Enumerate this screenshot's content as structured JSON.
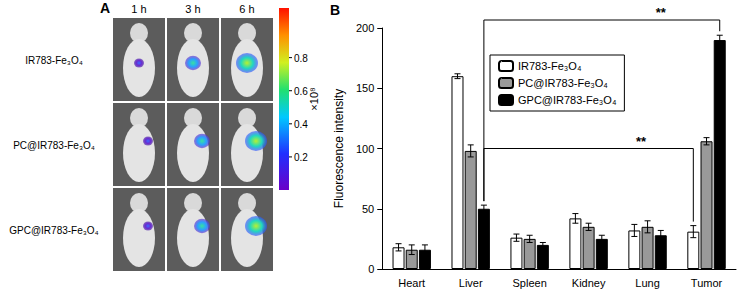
{
  "panel_a": {
    "label": "A",
    "columns": [
      "1 h",
      "3 h",
      "6 h"
    ],
    "rows": [
      "IR783-Fe₃O₄",
      "PC@IR783-Fe₃O₄",
      "GPC@IR783-Fe₃O₄"
    ],
    "colorbar": {
      "range": [
        0,
        1.1
      ],
      "ticks": [
        0.2,
        0.4,
        0.6,
        0.8
      ],
      "label": "×10⁸"
    }
  },
  "chart_data": {
    "type": "bar",
    "panel_label": "B",
    "categories": [
      "Heart",
      "Liver",
      "Spleen",
      "Kidney",
      "Lung",
      "Tumor"
    ],
    "y_label": "Fluorescence intensity",
    "ylim": [
      0,
      200
    ],
    "yticks": [
      0,
      50,
      100,
      150,
      200
    ],
    "grid": false,
    "legend": "upper center",
    "series": [
      {
        "name": "IR783-Fe₃O₄",
        "color": "#ffffff",
        "values": [
          18,
          160,
          26,
          42,
          32,
          31
        ],
        "errors": [
          3,
          2,
          3,
          4,
          5,
          5
        ]
      },
      {
        "name": "PC@IR783-Fe₃O₄",
        "color": "#999999",
        "values": [
          16,
          98,
          25,
          35,
          35,
          106
        ],
        "errors": [
          4,
          5,
          3,
          3,
          5,
          3
        ]
      },
      {
        "name": "GPC@IR783-Fe₃O₄",
        "color": "#000000",
        "values": [
          16,
          50,
          20,
          25,
          28,
          190
        ],
        "errors": [
          4,
          3,
          2,
          3,
          4,
          4
        ]
      }
    ],
    "annotations": [
      {
        "text": "**",
        "from": {
          "category": "Liver",
          "series": "GPC@IR783-Fe₃O₄"
        },
        "to": {
          "category": "Tumor",
          "series": "GPC@IR783-Fe₃O₄"
        }
      },
      {
        "text": "**",
        "from": {
          "category": "Liver",
          "series": "GPC@IR783-Fe₃O₄"
        },
        "to": {
          "category": "Tumor",
          "series": "IR783-Fe₃O₄"
        }
      }
    ]
  }
}
